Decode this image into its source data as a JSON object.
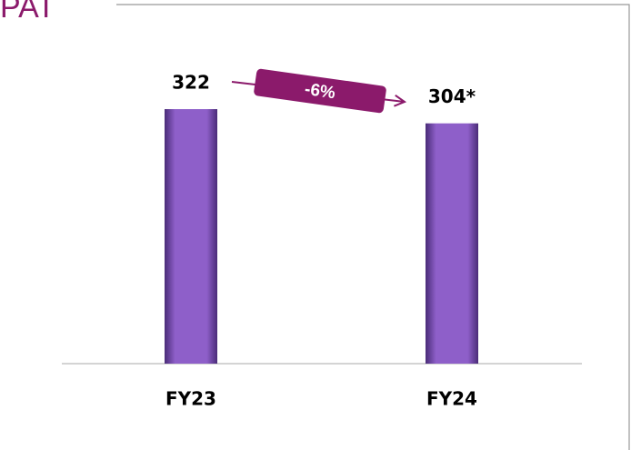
{
  "chart_data": {
    "type": "bar",
    "title": "PAT",
    "categories": [
      "FY23",
      "FY24"
    ],
    "values": [
      322,
      304
    ],
    "value_labels": [
      "322",
      "304*"
    ],
    "color": "#8e5fc9",
    "ylim": [
      0,
      360
    ],
    "annotation": "-6%"
  }
}
